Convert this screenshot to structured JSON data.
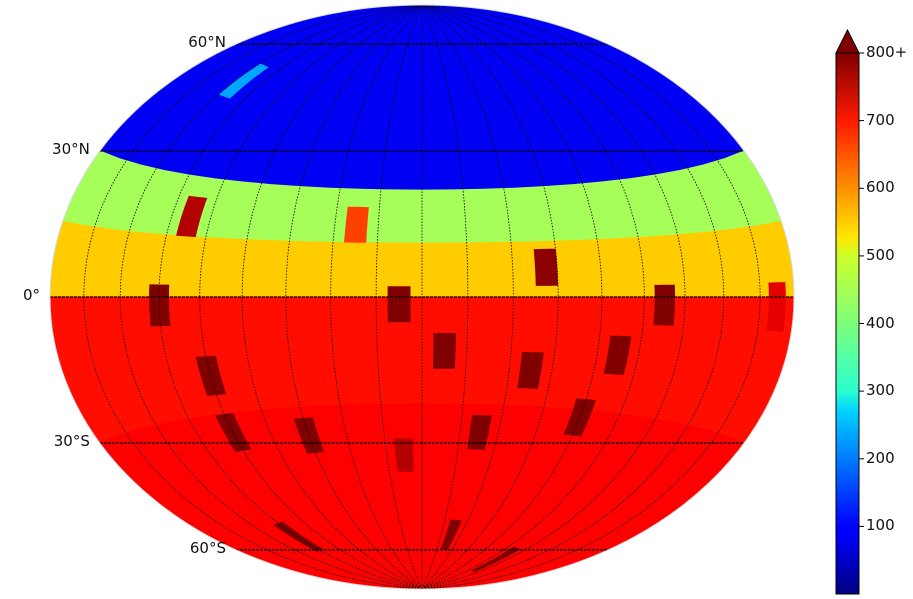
{
  "map": {
    "projection": "Hammer equal-area (whole sphere)",
    "parallels": [
      {
        "label": "60°N",
        "lat": 60
      },
      {
        "label": "30°N",
        "lat": 30
      },
      {
        "label": "0°",
        "lat": 0
      },
      {
        "label": "30°S",
        "lat": -30
      },
      {
        "label": "60°S",
        "lat": -60
      }
    ],
    "meridian_spacing_deg": 20,
    "latitude_bands": [
      {
        "lat_from": 90,
        "lat_to": 30,
        "level": 90
      },
      {
        "lat_from": 30,
        "lat_to": 15,
        "level": 430
      },
      {
        "lat_from": 15,
        "lat_to": 0,
        "level": 540
      },
      {
        "lat_from": 0,
        "lat_to": -30,
        "level": 690
      },
      {
        "lat_from": -30,
        "lat_to": -90,
        "level": 700
      }
    ],
    "cells": [
      {
        "lon": -135,
        "lat": 55,
        "level": 230
      },
      {
        "lon": -110,
        "lat": 20,
        "level": 760
      },
      {
        "lon": -30,
        "lat": 20,
        "level": 650
      },
      {
        "lon": 55,
        "lat": 8,
        "level": 790
      },
      {
        "lon": -120,
        "lat": -2,
        "level": 800
      },
      {
        "lon": -10,
        "lat": -2,
        "level": 800
      },
      {
        "lon": 110,
        "lat": -2,
        "level": 800
      },
      {
        "lon": 170,
        "lat": -2,
        "level": 720
      },
      {
        "lon": 10,
        "lat": -15,
        "level": 800
      },
      {
        "lon": 50,
        "lat": -20,
        "level": 800
      },
      {
        "lon": 90,
        "lat": -15,
        "level": 800
      },
      {
        "lon": -100,
        "lat": -20,
        "level": 800
      },
      {
        "lon": -100,
        "lat": -35,
        "level": 800
      },
      {
        "lon": -60,
        "lat": -38,
        "level": 800
      },
      {
        "lon": 30,
        "lat": -38,
        "level": 800
      },
      {
        "lon": 80,
        "lat": -32,
        "level": 800
      },
      {
        "lon": -10,
        "lat": -45,
        "level": 760
      },
      {
        "lon": -120,
        "lat": -65,
        "level": 800
      },
      {
        "lon": 30,
        "lat": -70,
        "level": 800
      },
      {
        "lon": 110,
        "lat": -75,
        "level": 800
      }
    ]
  },
  "colorbar": {
    "min": 0,
    "max": 800,
    "ticks": [
      {
        "value": 100,
        "label": "100"
      },
      {
        "value": 200,
        "label": "200"
      },
      {
        "value": 300,
        "label": "300"
      },
      {
        "value": 400,
        "label": "400"
      },
      {
        "value": 500,
        "label": "500"
      },
      {
        "value": 600,
        "label": "600"
      },
      {
        "value": 700,
        "label": "700"
      },
      {
        "value": 800,
        "label": "800+"
      }
    ],
    "colormap": "jet"
  }
}
